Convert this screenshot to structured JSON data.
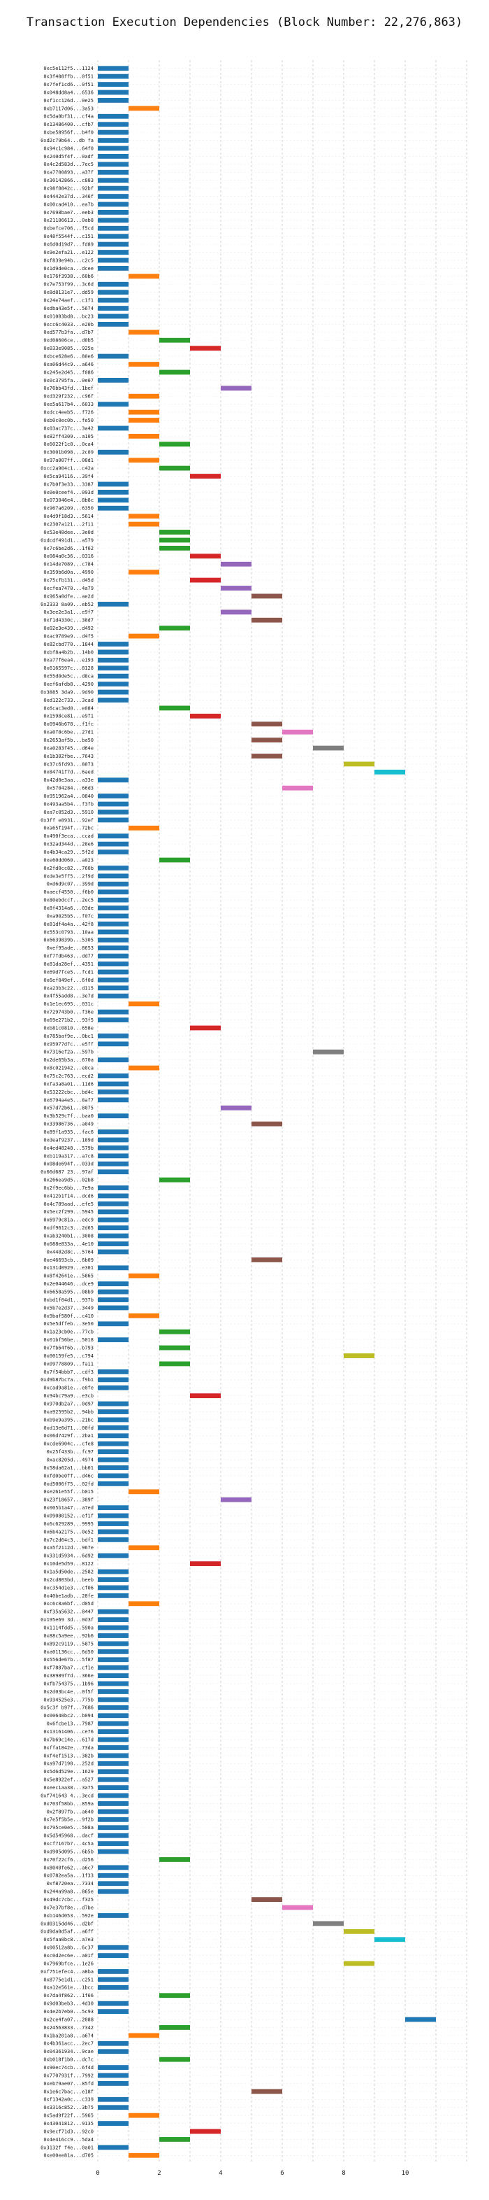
{
  "chart_data": {
    "type": "gantt",
    "title": "Transaction Execution Dependencies (Block Number: 22,276,863)",
    "xlabel": "",
    "ylabel": "",
    "xlim": [
      0,
      12
    ],
    "x_ticks": [
      0,
      2,
      4,
      6,
      8,
      10
    ],
    "grid": true,
    "palette": [
      "#1f77b4",
      "#ff7f0e",
      "#2ca02c",
      "#d62728",
      "#9467bd",
      "#8c564b",
      "#e377c2",
      "#7f7f7f",
      "#bcbd22",
      "#17becf"
    ],
    "transactions": [
      {
        "hash": "0xc5e112f5...1124",
        "start": 0
      },
      {
        "hash": "0x3f488ffb...0f51",
        "start": 0
      },
      {
        "hash": "0x7fef1cd6...0f51",
        "start": 0
      },
      {
        "hash": "0x048dd8a4...6536",
        "start": 0
      },
      {
        "hash": "0xf1cc126d...0e25",
        "start": 0
      },
      {
        "hash": "0xb7117d06...3a53",
        "start": 1
      },
      {
        "hash": "0x5da8bf31...cf4a",
        "start": 0
      },
      {
        "hash": "0x13486400...cfb7",
        "start": 0
      },
      {
        "hash": "0xbe58956f...b4f0",
        "start": 0
      },
      {
        "hash": "0xd2c79b64...db fa",
        "start": 0
      },
      {
        "hash": "0x94c1c984...64f0",
        "start": 0
      },
      {
        "hash": "0x240d5f4f...0adf",
        "start": 0
      },
      {
        "hash": "0x4c2d583d...7ec5",
        "start": 0
      },
      {
        "hash": "0xa7700893...a37f",
        "start": 0
      },
      {
        "hash": "0x30142866...c883",
        "start": 0
      },
      {
        "hash": "0x98f0842c...92bf",
        "start": 0
      },
      {
        "hash": "0x4442e37d...346f",
        "start": 0
      },
      {
        "hash": "0x00cad410...ea7b",
        "start": 0
      },
      {
        "hash": "0x7698bae7...eeb3",
        "start": 0
      },
      {
        "hash": "0x21106613...0ab8",
        "start": 0
      },
      {
        "hash": "0xbefce706...f5cd",
        "start": 0
      },
      {
        "hash": "0x48f5544f...c151",
        "start": 0
      },
      {
        "hash": "0x6d0d19d7...fd89",
        "start": 0
      },
      {
        "hash": "0x9e2efa21...e122",
        "start": 0
      },
      {
        "hash": "0xf839e94b...c2c5",
        "start": 0
      },
      {
        "hash": "0x1d9de0ca...dcee",
        "start": 0
      },
      {
        "hash": "0x176f3938...60b6",
        "start": 1
      },
      {
        "hash": "0x7e753f99...3c6d",
        "start": 0
      },
      {
        "hash": "0x8d8131e7...dd59",
        "start": 0
      },
      {
        "hash": "0x24e74aef...c1f1",
        "start": 0
      },
      {
        "hash": "0xdba43e5f...5674",
        "start": 0
      },
      {
        "hash": "0x01083bd8...bc23",
        "start": 0
      },
      {
        "hash": "0xcc6c4033...e20b",
        "start": 0
      },
      {
        "hash": "0xd577b3fa...d7b7",
        "start": 1
      },
      {
        "hash": "0xd08606ce...d0b5",
        "start": 2
      },
      {
        "hash": "0x033e9085...925e",
        "start": 3
      },
      {
        "hash": "0xbce628e6...80e6",
        "start": 0
      },
      {
        "hash": "0xa06d44c9...a646",
        "start": 1
      },
      {
        "hash": "0x245e2d45...f086",
        "start": 2
      },
      {
        "hash": "0x0c3795fa...0e07",
        "start": 0
      },
      {
        "hash": "0x76bb43fd...1bef",
        "start": 4
      },
      {
        "hash": "0xd329f232...c96f",
        "start": 1
      },
      {
        "hash": "0xe5a617b4...6033",
        "start": 0
      },
      {
        "hash": "0xdcc4eeb5...f726",
        "start": 1
      },
      {
        "hash": "0xb0c0ec0b...fe50",
        "start": 1
      },
      {
        "hash": "0x03ac737c...3a42",
        "start": 0
      },
      {
        "hash": "0x82ff4309...a105",
        "start": 1
      },
      {
        "hash": "0x6022f1c8...0ca4",
        "start": 2
      },
      {
        "hash": "0x3001b098...2c09",
        "start": 0
      },
      {
        "hash": "0x97a007ff...08d1",
        "start": 1
      },
      {
        "hash": "0xcc2a904c1...c42a",
        "start": 2
      },
      {
        "hash": "0x5ca94116...39f4",
        "start": 3
      },
      {
        "hash": "0x7b0f3e33...3387",
        "start": 0
      },
      {
        "hash": "0x0e0ceef4...093d",
        "start": 0
      },
      {
        "hash": "0x073046e4...8b8c",
        "start": 0
      },
      {
        "hash": "0x967a6209...6350",
        "start": 0
      },
      {
        "hash": "0x4d9f18d3...5614",
        "start": 1
      },
      {
        "hash": "0x2307a121...2f11",
        "start": 1
      },
      {
        "hash": "0x53e48dee...3e0d",
        "start": 2
      },
      {
        "hash": "0xdcdf491d1...a579",
        "start": 2
      },
      {
        "hash": "0x7c6be2d6...1f02",
        "start": 2
      },
      {
        "hash": "0x084a0c36...0316",
        "start": 3
      },
      {
        "hash": "0x14de7089...c784",
        "start": 4
      },
      {
        "hash": "0x359b6d0a...4990",
        "start": 1
      },
      {
        "hash": "0x75cfb131...d45d",
        "start": 3
      },
      {
        "hash": "0xcfea7470...4a79",
        "start": 4
      },
      {
        "hash": "0x965a0dfe...ae2d",
        "start": 5
      },
      {
        "hash": "0x2333 8a09...eb52",
        "start": 0
      },
      {
        "hash": "0x3ee2e3a1...e9f7",
        "start": 4
      },
      {
        "hash": "0xf1d4330c...38d7",
        "start": 5
      },
      {
        "hash": "0x02e3e439...d492",
        "start": 2
      },
      {
        "hash": "0xac9789e9...d4f5",
        "start": 1
      },
      {
        "hash": "0x82cbd770...1844",
        "start": 0
      },
      {
        "hash": "0xbf8a4b2b...14b0",
        "start": 0
      },
      {
        "hash": "0xa77f6ea4...e193",
        "start": 0
      },
      {
        "hash": "0x6165597c...8128",
        "start": 0
      },
      {
        "hash": "0x55d0de5c...d8ca",
        "start": 0
      },
      {
        "hash": "0xef6afdb8...4290",
        "start": 0
      },
      {
        "hash": "0x3885 3da9...9d90",
        "start": 0
      },
      {
        "hash": "0xd122c733...3cad",
        "start": 0
      },
      {
        "hash": "0x6cac3ed0...e084",
        "start": 2
      },
      {
        "hash": "0x1598ce81...e9f1",
        "start": 3
      },
      {
        "hash": "0x0946b678...f1fc",
        "start": 5
      },
      {
        "hash": "0xa0f8c6be...27d1",
        "start": 6
      },
      {
        "hash": "0x2653af5b...ba50",
        "start": 5
      },
      {
        "hash": "0xa0283f45...d64e",
        "start": 7
      },
      {
        "hash": "0x1b302fbe...7643",
        "start": 5
      },
      {
        "hash": "0x37c6fd93...8073",
        "start": 8
      },
      {
        "hash": "0x84741f7d...6aed",
        "start": 9
      },
      {
        "hash": "0x42d0e3aa...a33e",
        "start": 0
      },
      {
        "hash": "0x5704284...66d3",
        "start": 6
      },
      {
        "hash": "0x951962a4...0840",
        "start": 0
      },
      {
        "hash": "0x493aa5b4...f3fb",
        "start": 0
      },
      {
        "hash": "0xa7c052d3...5910",
        "start": 0
      },
      {
        "hash": "0x3ff e8931...92ef",
        "start": 0
      },
      {
        "hash": "0xa65f194f...72bc",
        "start": 1
      },
      {
        "hash": "0x490f3eca...ccad",
        "start": 0
      },
      {
        "hash": "0x32ad344d...28e6",
        "start": 0
      },
      {
        "hash": "0x4b34ca29...5f2d",
        "start": 0
      },
      {
        "hash": "0xe60dd060...a023",
        "start": 2
      },
      {
        "hash": "0x2fd0cc82...760b",
        "start": 0
      },
      {
        "hash": "0xde3e5ff5...2f9d",
        "start": 0
      },
      {
        "hash": "0xd6d9c07...399d",
        "start": 0
      },
      {
        "hash": "0xaecf4550...f6b0",
        "start": 0
      },
      {
        "hash": "0x80ebdccf...2ec5",
        "start": 0
      },
      {
        "hash": "0x8f4314a6...03de",
        "start": 0
      },
      {
        "hash": "0xa9025b5...f07c",
        "start": 0
      },
      {
        "hash": "0x81df4a4a...42f8",
        "start": 0
      },
      {
        "hash": "0x553c0793...10aa",
        "start": 0
      },
      {
        "hash": "0x6639839b...5305",
        "start": 0
      },
      {
        "hash": "0xef95ade...8653",
        "start": 0
      },
      {
        "hash": "0xf7fdb463...dd77",
        "start": 0
      },
      {
        "hash": "0x81da28ef...4351",
        "start": 0
      },
      {
        "hash": "0x69d7fce5...fcd1",
        "start": 0
      },
      {
        "hash": "0x6ef049ef...6f0d",
        "start": 0
      },
      {
        "hash": "0xa23b3c22...d115",
        "start": 0
      },
      {
        "hash": "0x4f55add8...3e7d",
        "start": 0
      },
      {
        "hash": "0x1e1ec695...031c",
        "start": 1
      },
      {
        "hash": "0x729743b0...f36e",
        "start": 0
      },
      {
        "hash": "0x69e271b2...93f5",
        "start": 0
      },
      {
        "hash": "0xb81c0810...658e",
        "start": 3
      },
      {
        "hash": "0x785baf9e...0bc1",
        "start": 0
      },
      {
        "hash": "0x95977dfc...e5ff",
        "start": 0
      },
      {
        "hash": "0x7316ef2a...597b",
        "start": 7
      },
      {
        "hash": "0x2de65b3a...670a",
        "start": 0
      },
      {
        "hash": "0x8c021942...e0ca",
        "start": 1
      },
      {
        "hash": "0x75c2c763...ecd2",
        "start": 0
      },
      {
        "hash": "0xfa3a8a01...11d6",
        "start": 0
      },
      {
        "hash": "0x53222cbc...bd4c",
        "start": 0
      },
      {
        "hash": "0x6794a4e5...8af7",
        "start": 0
      },
      {
        "hash": "0x57d72b61...8075",
        "start": 4
      },
      {
        "hash": "0x3b529c7f...baa0",
        "start": 0
      },
      {
        "hash": "0x33986736...a049",
        "start": 5
      },
      {
        "hash": "0x89f1a935...fac6",
        "start": 0
      },
      {
        "hash": "0xdeaf9237...189d",
        "start": 0
      },
      {
        "hash": "0x4ed48248...579b",
        "start": 0
      },
      {
        "hash": "0xb119a317...a7c8",
        "start": 0
      },
      {
        "hash": "0x08de694f...033d",
        "start": 0
      },
      {
        "hash": "0x66d687 23...97af",
        "start": 0
      },
      {
        "hash": "0x266ea9d5...02b8",
        "start": 2
      },
      {
        "hash": "0x2f9ec6bb...7e9a",
        "start": 0
      },
      {
        "hash": "0x412b1f14...dcd6",
        "start": 0
      },
      {
        "hash": "0x4c789aad...efe5",
        "start": 0
      },
      {
        "hash": "0x5ec2f299...5945",
        "start": 0
      },
      {
        "hash": "0x6979c81a...edc9",
        "start": 0
      },
      {
        "hash": "0xdf9612c3...2d65",
        "start": 0
      },
      {
        "hash": "0xab3240b1...3008",
        "start": 0
      },
      {
        "hash": "0x088e833a...4e10",
        "start": 0
      },
      {
        "hash": "0x4402d8c...5764",
        "start": 0
      },
      {
        "hash": "0xe46693cb...6b09",
        "start": 5
      },
      {
        "hash": "0x131d0929...e301",
        "start": 0
      },
      {
        "hash": "0x8f42641e...5865",
        "start": 1
      },
      {
        "hash": "0x2e044646...dce9",
        "start": 0
      },
      {
        "hash": "0x6658a595...08b9",
        "start": 0
      },
      {
        "hash": "0xbd1f04d1...937b",
        "start": 0
      },
      {
        "hash": "0x5b7e2d37...3449",
        "start": 0
      },
      {
        "hash": "0x9baf580f...c410",
        "start": 1
      },
      {
        "hash": "0x5e5dffeb...3e50",
        "start": 0
      },
      {
        "hash": "0x1a23cb0e...77cb",
        "start": 2
      },
      {
        "hash": "0x01bf56be...5018",
        "start": 0
      },
      {
        "hash": "0x7fb64f6b...b793",
        "start": 2
      },
      {
        "hash": "0x00159fe5...c794",
        "start": 8
      },
      {
        "hash": "0x09778809...fa11",
        "start": 2
      },
      {
        "hash": "0x7f54bbb7...cdf3",
        "start": 0
      },
      {
        "hash": "0xd9b87bc7a...f9b1",
        "start": 0
      },
      {
        "hash": "0xcad9a81e...e0fe",
        "start": 0
      },
      {
        "hash": "0x94bc79a9...e3cb",
        "start": 3
      },
      {
        "hash": "0x970db2a7...0d97",
        "start": 0
      },
      {
        "hash": "0xa92595b2...94bb",
        "start": 0
      },
      {
        "hash": "0xb9e9a395...21bc",
        "start": 0
      },
      {
        "hash": "0xd13e6d71...00fd",
        "start": 0
      },
      {
        "hash": "0x06d7429f...2ba1",
        "start": 0
      },
      {
        "hash": "0xcde6904c...cfe8",
        "start": 0
      },
      {
        "hash": "0x25f433b...fc97",
        "start": 0
      },
      {
        "hash": "0xac8205d...4974",
        "start": 0
      },
      {
        "hash": "0x58da62a1...bb01",
        "start": 0
      },
      {
        "hash": "0xfd0be0ff...d46c",
        "start": 0
      },
      {
        "hash": "0xd5006f75...02fd",
        "start": 0
      },
      {
        "hash": "0xe261e55f...b015",
        "start": 1
      },
      {
        "hash": "0x23f18657...389f",
        "start": 4
      },
      {
        "hash": "0x005b1a47...a7ed",
        "start": 0
      },
      {
        "hash": "0x09080152...ef1f",
        "start": 0
      },
      {
        "hash": "0x6c629289...9995",
        "start": 0
      },
      {
        "hash": "0x6b4a2175...0e52",
        "start": 0
      },
      {
        "hash": "0x7c2d64c3...bdf1",
        "start": 0
      },
      {
        "hash": "0xa5f2112d...967e",
        "start": 1
      },
      {
        "hash": "0x331d5934...6d92",
        "start": 0
      },
      {
        "hash": "0x10de5d59...8122",
        "start": 3
      },
      {
        "hash": "0x1a5d50de...2582",
        "start": 0
      },
      {
        "hash": "0x2cd803bd...beeb",
        "start": 0
      },
      {
        "hash": "0xc354d1e3...cf06",
        "start": 0
      },
      {
        "hash": "0x40be1adb...28fe",
        "start": 0
      },
      {
        "hash": "0xc6c8a6bf...d05d",
        "start": 1
      },
      {
        "hash": "0xf35a5632...8447",
        "start": 0
      },
      {
        "hash": "0x195e69 3d...0d3f",
        "start": 0
      },
      {
        "hash": "0x1114fdd5...590a",
        "start": 0
      },
      {
        "hash": "0x88c5a9ee...92b6",
        "start": 0
      },
      {
        "hash": "0x892c9119...5875",
        "start": 0
      },
      {
        "hash": "0xa01136cc...6d50",
        "start": 0
      },
      {
        "hash": "0x556de67b...5f87",
        "start": 0
      },
      {
        "hash": "0xf7887ba7...cf1e",
        "start": 0
      },
      {
        "hash": "0x38989f7d...366e",
        "start": 0
      },
      {
        "hash": "0xfb754375...1b96",
        "start": 0
      },
      {
        "hash": "0x2d03bc4e...0f5f",
        "start": 0
      },
      {
        "hash": "0x934525e3...775b",
        "start": 0
      },
      {
        "hash": "0x5c3f b97f...7686",
        "start": 0
      },
      {
        "hash": "0x00640bc2...b094",
        "start": 0
      },
      {
        "hash": "0x6fcbe13...7987",
        "start": 0
      },
      {
        "hash": "0x13161406...ce76",
        "start": 0
      },
      {
        "hash": "0x7b69c14e...617d",
        "start": 0
      },
      {
        "hash": "0xffa1842e...73da",
        "start": 0
      },
      {
        "hash": "0xf4ef1513...382b",
        "start": 0
      },
      {
        "hash": "0xa97d7198...252d",
        "start": 0
      },
      {
        "hash": "0x5d6d529e...1629",
        "start": 0
      },
      {
        "hash": "0x5e8922ef...a527",
        "start": 0
      },
      {
        "hash": "0xeec1aa38...3a75",
        "start": 0
      },
      {
        "hash": "0xf741643 4...3ecd",
        "start": 0
      },
      {
        "hash": "0x703f58bb...859a",
        "start": 0
      },
      {
        "hash": "0x2f897fb...a640",
        "start": 0
      },
      {
        "hash": "0x7e5f5b5e...9f2b",
        "start": 0
      },
      {
        "hash": "0x795ce0e5...508a",
        "start": 0
      },
      {
        "hash": "0x5d545968...dacf",
        "start": 0
      },
      {
        "hash": "0xcf7167b7...4c5a",
        "start": 0
      },
      {
        "hash": "0xd905d095...6b5b",
        "start": 0
      },
      {
        "hash": "0x70f22cf6...d256",
        "start": 2
      },
      {
        "hash": "0x8040fe62...a6c7",
        "start": 0
      },
      {
        "hash": "0x0782ea5a...1f33",
        "start": 0
      },
      {
        "hash": "0xf8720ea...7334",
        "start": 0
      },
      {
        "hash": "0x244a99a8...865e",
        "start": 0
      },
      {
        "hash": "0x49dc7cbc...f325",
        "start": 5
      },
      {
        "hash": "0x7e37bf8e...d7be",
        "start": 6
      },
      {
        "hash": "0xb146d053...592e",
        "start": 0
      },
      {
        "hash": "0xd0315dd46...d2bf",
        "start": 7
      },
      {
        "hash": "0xd9da0d5af...a6ff",
        "start": 8
      },
      {
        "hash": "0x5faa0bc8...a7e3",
        "start": 9
      },
      {
        "hash": "0x00512a8b...6c37",
        "start": 0
      },
      {
        "hash": "0xc0d2ec6e...a01f",
        "start": 0
      },
      {
        "hash": "0x7969bfce...1e26",
        "start": 8
      },
      {
        "hash": "0xf751efec4...a8ba",
        "start": 0
      },
      {
        "hash": "0x8775e1d1...c251",
        "start": 0
      },
      {
        "hash": "0xa12e561e...1bcc",
        "start": 0
      },
      {
        "hash": "0x7da4f862...1f66",
        "start": 2
      },
      {
        "hash": "0x9d03beb3...4d30",
        "start": 0
      },
      {
        "hash": "0x4e2b7eb0...5c93",
        "start": 0
      },
      {
        "hash": "0x2ce4fa07...2088",
        "start": 10
      },
      {
        "hash": "0x24563833...7342",
        "start": 2
      },
      {
        "hash": "0x1ba201a8...a674",
        "start": 1
      },
      {
        "hash": "0x4b361acc...2ec7",
        "start": 0
      },
      {
        "hash": "0x04361934...9cae",
        "start": 0
      },
      {
        "hash": "0xb018f1b0...dc7c",
        "start": 2
      },
      {
        "hash": "0x90ec74cb...6f4d",
        "start": 0
      },
      {
        "hash": "0x7707931f...7992",
        "start": 0
      },
      {
        "hash": "0xeb79ae07...85fd",
        "start": 0
      },
      {
        "hash": "0x1e6c7bac...e18f",
        "start": 5
      },
      {
        "hash": "0xf1342a0c...c339",
        "start": 0
      },
      {
        "hash": "0x3316c852...3b75",
        "start": 0
      },
      {
        "hash": "0x5ad9f22f...5965",
        "start": 1
      },
      {
        "hash": "0x43041812...9135",
        "start": 0
      },
      {
        "hash": "0x9ecf71d3...92c0",
        "start": 3
      },
      {
        "hash": "0x4e416cc9...5da4",
        "start": 2
      },
      {
        "hash": "0x3132f f4e...0a01",
        "start": 0
      },
      {
        "hash": "0xe00ee81a...d705",
        "start": 1
      }
    ]
  }
}
